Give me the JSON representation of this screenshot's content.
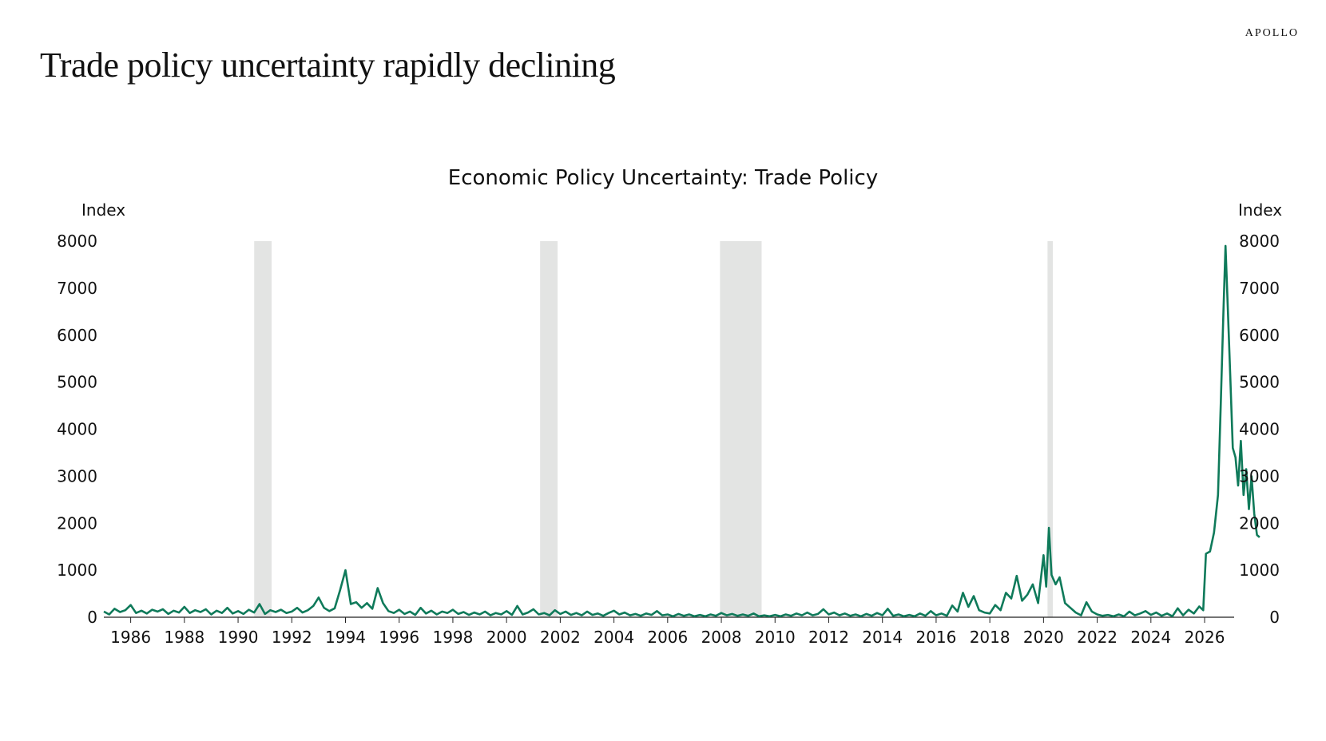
{
  "brand": "APOLLO",
  "headline": "Trade policy uncertainty rapidly declining",
  "chart_data": {
    "type": "line",
    "title": "Economic Policy Uncertainty: Trade Policy",
    "ylabel_left": "Index",
    "ylabel_right": "Index",
    "ylim": [
      0,
      8000
    ],
    "yticks": [
      0,
      1000,
      2000,
      3000,
      4000,
      5000,
      6000,
      7000,
      8000
    ],
    "xlim": [
      1985.0,
      2027.1
    ],
    "xticks": [
      1986,
      1988,
      1990,
      1992,
      1994,
      1996,
      1998,
      2000,
      2002,
      2004,
      2006,
      2008,
      2010,
      2012,
      2014,
      2016,
      2018,
      2020,
      2022,
      2024,
      2026
    ],
    "line_color": "#0f7a5a",
    "recession_color": "#e3e4e3",
    "recessions": [
      [
        1990.6,
        1991.25
      ],
      [
        2001.25,
        2001.9
      ],
      [
        2007.95,
        2009.5
      ],
      [
        2020.15,
        2020.35
      ]
    ],
    "series": [
      {
        "points": [
          [
            1985.0,
            120
          ],
          [
            1985.2,
            60
          ],
          [
            1985.4,
            180
          ],
          [
            1985.6,
            110
          ],
          [
            1985.8,
            150
          ],
          [
            1986.0,
            260
          ],
          [
            1986.2,
            90
          ],
          [
            1986.4,
            140
          ],
          [
            1986.6,
            80
          ],
          [
            1986.8,
            160
          ],
          [
            1987.0,
            120
          ],
          [
            1987.2,
            170
          ],
          [
            1987.4,
            70
          ],
          [
            1987.6,
            140
          ],
          [
            1987.8,
            100
          ],
          [
            1988.0,
            220
          ],
          [
            1988.2,
            90
          ],
          [
            1988.4,
            150
          ],
          [
            1988.6,
            110
          ],
          [
            1988.8,
            170
          ],
          [
            1989.0,
            60
          ],
          [
            1989.2,
            140
          ],
          [
            1989.4,
            90
          ],
          [
            1989.6,
            200
          ],
          [
            1989.8,
            80
          ],
          [
            1990.0,
            130
          ],
          [
            1990.2,
            70
          ],
          [
            1990.4,
            160
          ],
          [
            1990.6,
            100
          ],
          [
            1990.8,
            280
          ],
          [
            1991.0,
            70
          ],
          [
            1991.2,
            150
          ],
          [
            1991.4,
            110
          ],
          [
            1991.6,
            160
          ],
          [
            1991.8,
            90
          ],
          [
            1992.0,
            120
          ],
          [
            1992.2,
            200
          ],
          [
            1992.4,
            100
          ],
          [
            1992.6,
            150
          ],
          [
            1992.8,
            240
          ],
          [
            1993.0,
            420
          ],
          [
            1993.2,
            200
          ],
          [
            1993.4,
            130
          ],
          [
            1993.6,
            190
          ],
          [
            1993.8,
            580
          ],
          [
            1994.0,
            1000
          ],
          [
            1994.2,
            280
          ],
          [
            1994.4,
            320
          ],
          [
            1994.6,
            200
          ],
          [
            1994.8,
            300
          ],
          [
            1995.0,
            180
          ],
          [
            1995.2,
            620
          ],
          [
            1995.4,
            300
          ],
          [
            1995.6,
            130
          ],
          [
            1995.8,
            90
          ],
          [
            1996.0,
            160
          ],
          [
            1996.2,
            70
          ],
          [
            1996.4,
            120
          ],
          [
            1996.6,
            50
          ],
          [
            1996.8,
            200
          ],
          [
            1997.0,
            80
          ],
          [
            1997.2,
            140
          ],
          [
            1997.4,
            60
          ],
          [
            1997.6,
            120
          ],
          [
            1997.8,
            90
          ],
          [
            1998.0,
            160
          ],
          [
            1998.2,
            70
          ],
          [
            1998.4,
            110
          ],
          [
            1998.6,
            50
          ],
          [
            1998.8,
            100
          ],
          [
            1999.0,
            60
          ],
          [
            1999.2,
            120
          ],
          [
            1999.4,
            40
          ],
          [
            1999.6,
            90
          ],
          [
            1999.8,
            60
          ],
          [
            2000.0,
            130
          ],
          [
            2000.2,
            50
          ],
          [
            2000.4,
            240
          ],
          [
            2000.6,
            60
          ],
          [
            2000.8,
            100
          ],
          [
            2001.0,
            170
          ],
          [
            2001.2,
            60
          ],
          [
            2001.4,
            90
          ],
          [
            2001.6,
            40
          ],
          [
            2001.8,
            150
          ],
          [
            2002.0,
            70
          ],
          [
            2002.2,
            120
          ],
          [
            2002.4,
            50
          ],
          [
            2002.6,
            90
          ],
          [
            2002.8,
            40
          ],
          [
            2003.0,
            120
          ],
          [
            2003.2,
            50
          ],
          [
            2003.4,
            80
          ],
          [
            2003.6,
            30
          ],
          [
            2003.8,
            90
          ],
          [
            2004.0,
            140
          ],
          [
            2004.2,
            60
          ],
          [
            2004.4,
            100
          ],
          [
            2004.6,
            40
          ],
          [
            2004.8,
            70
          ],
          [
            2005.0,
            30
          ],
          [
            2005.2,
            80
          ],
          [
            2005.4,
            50
          ],
          [
            2005.6,
            130
          ],
          [
            2005.8,
            40
          ],
          [
            2006.0,
            60
          ],
          [
            2006.2,
            20
          ],
          [
            2006.4,
            70
          ],
          [
            2006.6,
            30
          ],
          [
            2006.8,
            60
          ],
          [
            2007.0,
            20
          ],
          [
            2007.2,
            50
          ],
          [
            2007.4,
            20
          ],
          [
            2007.6,
            60
          ],
          [
            2007.8,
            30
          ],
          [
            2008.0,
            90
          ],
          [
            2008.2,
            40
          ],
          [
            2008.4,
            70
          ],
          [
            2008.6,
            30
          ],
          [
            2008.8,
            60
          ],
          [
            2009.0,
            30
          ],
          [
            2009.2,
            80
          ],
          [
            2009.4,
            20
          ],
          [
            2009.6,
            40
          ],
          [
            2009.8,
            20
          ],
          [
            2010.0,
            50
          ],
          [
            2010.2,
            20
          ],
          [
            2010.4,
            60
          ],
          [
            2010.6,
            30
          ],
          [
            2010.8,
            80
          ],
          [
            2011.0,
            40
          ],
          [
            2011.2,
            100
          ],
          [
            2011.4,
            40
          ],
          [
            2011.6,
            70
          ],
          [
            2011.8,
            170
          ],
          [
            2012.0,
            60
          ],
          [
            2012.2,
            100
          ],
          [
            2012.4,
            40
          ],
          [
            2012.6,
            80
          ],
          [
            2012.8,
            30
          ],
          [
            2013.0,
            60
          ],
          [
            2013.2,
            20
          ],
          [
            2013.4,
            70
          ],
          [
            2013.6,
            30
          ],
          [
            2013.8,
            90
          ],
          [
            2014.0,
            40
          ],
          [
            2014.2,
            180
          ],
          [
            2014.4,
            30
          ],
          [
            2014.6,
            60
          ],
          [
            2014.8,
            20
          ],
          [
            2015.0,
            50
          ],
          [
            2015.2,
            20
          ],
          [
            2015.4,
            80
          ],
          [
            2015.6,
            30
          ],
          [
            2015.8,
            130
          ],
          [
            2016.0,
            40
          ],
          [
            2016.2,
            80
          ],
          [
            2016.4,
            30
          ],
          [
            2016.6,
            250
          ],
          [
            2016.8,
            120
          ],
          [
            2017.0,
            520
          ],
          [
            2017.2,
            220
          ],
          [
            2017.4,
            450
          ],
          [
            2017.6,
            150
          ],
          [
            2017.8,
            100
          ],
          [
            2018.0,
            80
          ],
          [
            2018.2,
            260
          ],
          [
            2018.4,
            150
          ],
          [
            2018.6,
            520
          ],
          [
            2018.8,
            400
          ],
          [
            2019.0,
            880
          ],
          [
            2019.2,
            350
          ],
          [
            2019.4,
            480
          ],
          [
            2019.6,
            700
          ],
          [
            2019.8,
            300
          ],
          [
            2020.0,
            1320
          ],
          [
            2020.1,
            650
          ],
          [
            2020.2,
            1900
          ],
          [
            2020.3,
            900
          ],
          [
            2020.45,
            700
          ],
          [
            2020.6,
            850
          ],
          [
            2020.8,
            300
          ],
          [
            2021.0,
            200
          ],
          [
            2021.2,
            100
          ],
          [
            2021.4,
            40
          ],
          [
            2021.6,
            320
          ],
          [
            2021.8,
            120
          ],
          [
            2022.0,
            60
          ],
          [
            2022.2,
            30
          ],
          [
            2022.4,
            50
          ],
          [
            2022.6,
            20
          ],
          [
            2022.8,
            60
          ],
          [
            2023.0,
            20
          ],
          [
            2023.2,
            120
          ],
          [
            2023.4,
            40
          ],
          [
            2023.6,
            80
          ],
          [
            2023.8,
            130
          ],
          [
            2024.0,
            50
          ],
          [
            2024.2,
            100
          ],
          [
            2024.4,
            30
          ],
          [
            2024.6,
            80
          ],
          [
            2024.8,
            20
          ],
          [
            2025.0,
            190
          ],
          [
            2025.2,
            40
          ],
          [
            2025.4,
            160
          ],
          [
            2025.6,
            80
          ],
          [
            2025.8,
            230
          ],
          [
            2025.95,
            150
          ],
          [
            2026.05,
            1350
          ],
          [
            2026.2,
            1400
          ],
          [
            2026.35,
            1800
          ],
          [
            2026.5,
            2600
          ],
          [
            2026.6,
            4500
          ],
          [
            2026.7,
            6500
          ],
          [
            2026.78,
            7900
          ],
          [
            2026.85,
            6800
          ],
          [
            2026.95,
            5200
          ],
          [
            2027.05,
            3600
          ],
          [
            2027.15,
            3400
          ],
          [
            2027.25,
            2800
          ],
          [
            2027.35,
            3750
          ],
          [
            2027.45,
            2600
          ],
          [
            2027.55,
            3150
          ],
          [
            2027.65,
            2300
          ],
          [
            2027.75,
            3000
          ],
          [
            2027.85,
            2200
          ],
          [
            2027.95,
            1750
          ],
          [
            2028.05,
            1700
          ]
        ]
      }
    ]
  }
}
